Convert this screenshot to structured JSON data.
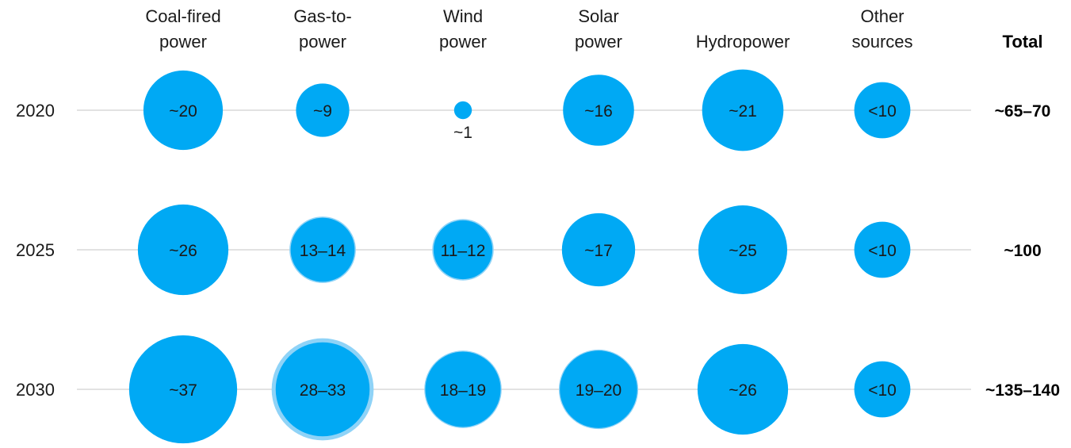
{
  "chart_data": {
    "type": "bubble-matrix",
    "title": "",
    "categories": [
      {
        "line1": "Coal-fired",
        "line2": "power"
      },
      {
        "line1": "Gas-to-",
        "line2": "power"
      },
      {
        "line1": "Wind",
        "line2": "power"
      },
      {
        "line1": "Solar",
        "line2": "power"
      },
      {
        "line1": "Hydropower",
        "line2": ""
      },
      {
        "line1": "Other",
        "line2": "sources"
      }
    ],
    "total_header": "Total",
    "rows": [
      {
        "year": "2020",
        "total": "~65–70",
        "cells": [
          {
            "label": "~20",
            "value": 20
          },
          {
            "label": "~9",
            "value": 9
          },
          {
            "label": "~1",
            "value": 1
          },
          {
            "label": "~16",
            "value": 16
          },
          {
            "label": "~21",
            "value": 21
          },
          {
            "label": "<10",
            "value": 10
          }
        ]
      },
      {
        "year": "2025",
        "total": "~100",
        "cells": [
          {
            "label": "~26",
            "value": 26
          },
          {
            "label": "13–14",
            "value": 13,
            "value_high": 14
          },
          {
            "label": "11–12",
            "value": 11,
            "value_high": 12
          },
          {
            "label": "~17",
            "value": 17
          },
          {
            "label": "~25",
            "value": 25
          },
          {
            "label": "<10",
            "value": 10
          }
        ]
      },
      {
        "year": "2030",
        "total": "~135–140",
        "cells": [
          {
            "label": "~37",
            "value": 37
          },
          {
            "label": "28–33",
            "value": 28,
            "value_high": 33
          },
          {
            "label": "18–19",
            "value": 18,
            "value_high": 19
          },
          {
            "label": "19–20",
            "value": 19,
            "value_high": 20
          },
          {
            "label": "~26",
            "value": 26
          },
          {
            "label": "<10",
            "value": 10
          }
        ]
      }
    ],
    "colors": {
      "bubble": "#00A9F4",
      "bubble_range": "#8FD3F7",
      "gridline": "#d9d9d9",
      "text": "#1a1a1a"
    }
  }
}
